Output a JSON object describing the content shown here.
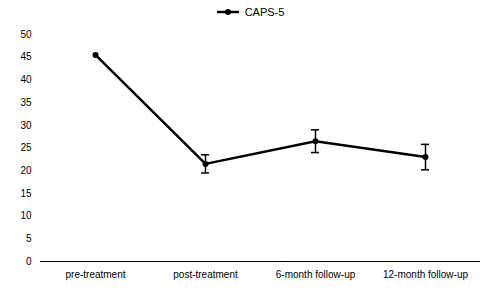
{
  "chart_data": {
    "type": "line",
    "categories": [
      "pre-treatment",
      "post-treatment",
      "6-month follow-up",
      "12-month follow-up"
    ],
    "series": [
      {
        "name": "CAPS-5",
        "color": "#000000",
        "marker": "circle",
        "values": [
          45.5,
          21.5,
          26.5,
          23.0
        ],
        "errors": [
          null,
          2.0,
          2.5,
          2.8
        ]
      }
    ],
    "ylim": [
      0,
      50
    ],
    "yticks": [
      0,
      5,
      10,
      15,
      20,
      25,
      30,
      35,
      40,
      45,
      50
    ],
    "grid": false,
    "legend": "top"
  }
}
